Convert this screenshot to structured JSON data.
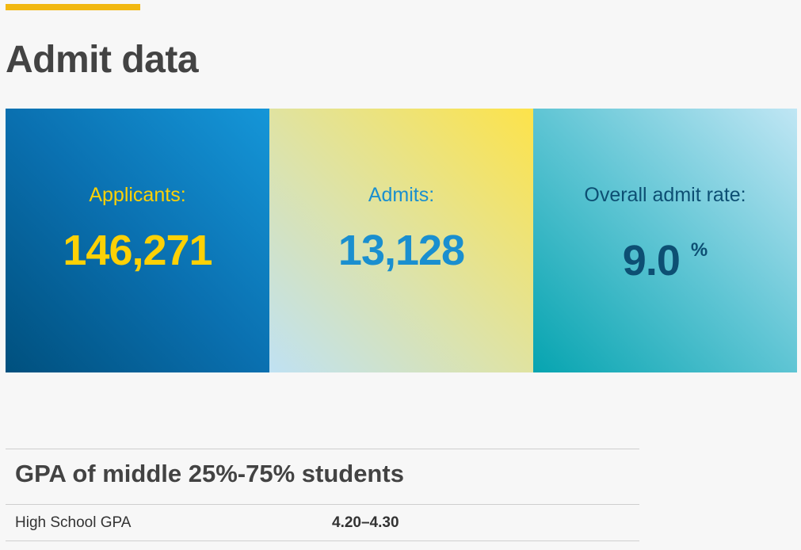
{
  "page_title": "Admit data",
  "colors": {
    "accent_bar": "#f2b811",
    "applicants_text": "#fdd106",
    "admits_text": "#1a8fcf",
    "rate_text": "#0d4f73"
  },
  "stats": [
    {
      "label": "Applicants:",
      "value": "146,271",
      "unit": ""
    },
    {
      "label": "Admits:",
      "value": "13,128",
      "unit": ""
    },
    {
      "label": "Overall admit rate:",
      "value": "9.0",
      "unit": "%"
    }
  ],
  "gpa_table": {
    "heading": "GPA of middle 25%-75% students",
    "rows": [
      {
        "label": "High School GPA",
        "value": "4.20–4.30"
      }
    ]
  }
}
